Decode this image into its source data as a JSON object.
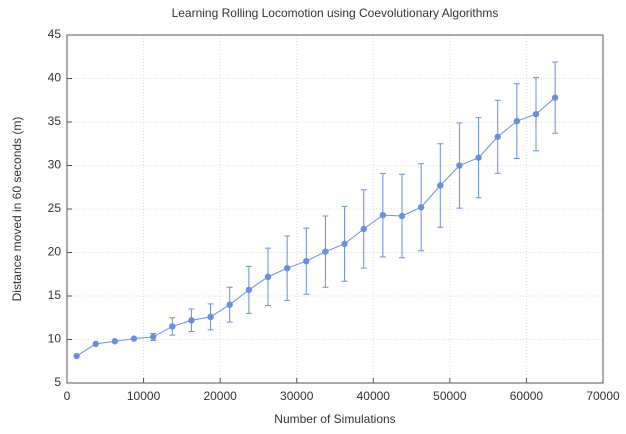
{
  "chart_data": {
    "type": "line",
    "title": "Learning Rolling Locomotion using Coevolutionary Algorithms",
    "xlabel": "Number of Simulations",
    "ylabel": "Distance moved in 60 seconds (m)",
    "x": [
      1250,
      3750,
      6250,
      8750,
      11250,
      13750,
      16250,
      18750,
      21250,
      23750,
      26250,
      28750,
      31250,
      33750,
      36250,
      38750,
      41250,
      43750,
      46250,
      48750,
      51250,
      53750,
      56250,
      58750,
      61250,
      63750
    ],
    "series": [
      {
        "color": "#6b8fdc",
        "values": [
          8.1,
          9.5,
          9.8,
          10.1,
          10.3,
          11.5,
          12.2,
          12.6,
          14.0,
          15.7,
          17.2,
          18.2,
          19.0,
          20.1,
          21.0,
          22.7,
          24.3,
          24.2,
          25.2,
          27.7,
          30.0,
          30.9,
          33.3,
          35.1,
          35.9,
          37.8
        ],
        "errors": [
          0,
          0,
          0,
          0,
          0.4,
          1.0,
          1.3,
          1.5,
          2.0,
          2.7,
          3.3,
          3.7,
          3.8,
          4.1,
          4.3,
          4.5,
          4.8,
          4.8,
          5.0,
          4.8,
          4.9,
          4.6,
          4.2,
          4.3,
          4.2,
          4.1
        ]
      }
    ],
    "xlim": [
      0,
      70000
    ],
    "xticks": [
      0,
      10000,
      20000,
      30000,
      40000,
      50000,
      60000,
      70000
    ],
    "ylim": [
      5,
      45
    ],
    "yticks": [
      5,
      10,
      15,
      20,
      25,
      30,
      35,
      40,
      45
    ],
    "grid": true
  }
}
